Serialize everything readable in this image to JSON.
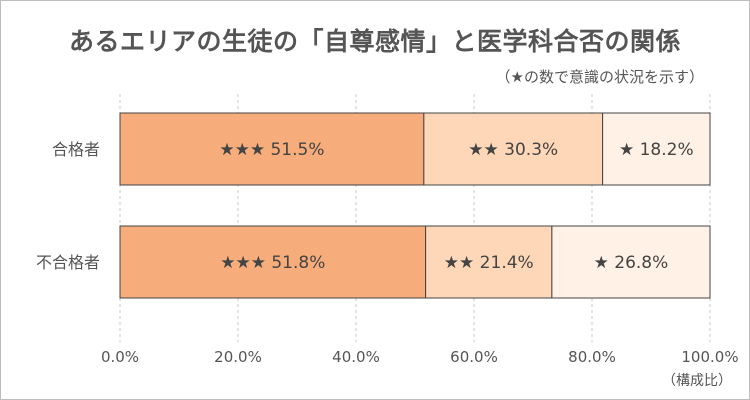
{
  "chart_data": {
    "type": "bar",
    "orientation": "horizontal",
    "stacked": true,
    "title": "あるエリアの生徒の「自尊感情」と医学科合否の関係",
    "subtitle": "（★の数で意識の状況を示す）",
    "unit_label": "（構成比）",
    "categories": [
      "合格者",
      "不合格者"
    ],
    "series": [
      {
        "name": "★★★",
        "values": [
          51.5,
          51.8
        ],
        "color": "#f6ad7b"
      },
      {
        "name": "★★",
        "values": [
          30.3,
          21.4
        ],
        "color": "#fdd7b7"
      },
      {
        "name": "★",
        "values": [
          18.2,
          26.8
        ],
        "color": "#fff1e6"
      }
    ],
    "segment_labels": [
      [
        "★★★ 51.5%",
        "★★ 30.3%",
        "★ 18.2%"
      ],
      [
        "★★★ 51.8%",
        "★★ 21.4%",
        "★ 26.8%"
      ]
    ],
    "xlim": [
      0,
      100
    ],
    "xticks": [
      0,
      20,
      40,
      60,
      80,
      100
    ],
    "xtick_labels": [
      "0.0%",
      "20.0%",
      "40.0%",
      "60.0%",
      "80.0%",
      "100.0%"
    ],
    "grid": true,
    "legend": "none"
  }
}
